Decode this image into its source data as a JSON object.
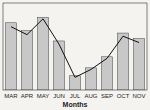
{
  "chart_data": {
    "type": "bar",
    "xlabel": "Months",
    "categories": [
      "MAR",
      "APR",
      "MAY",
      "JUN",
      "JUL",
      "AUG",
      "SEP",
      "OCT",
      "NOV"
    ],
    "series": [
      {
        "type": "bar",
        "color": "#c8c8c8",
        "values": [
          85,
          75,
          92,
          62,
          18,
          28,
          42,
          72,
          65
        ]
      },
      {
        "type": "line",
        "color": "#111111",
        "values": [
          80,
          70,
          90,
          58,
          16,
          26,
          40,
          68,
          60
        ]
      }
    ],
    "ylim": [
      0,
      110
    ],
    "yticks": [],
    "grid": false,
    "tick_labels": "x"
  }
}
